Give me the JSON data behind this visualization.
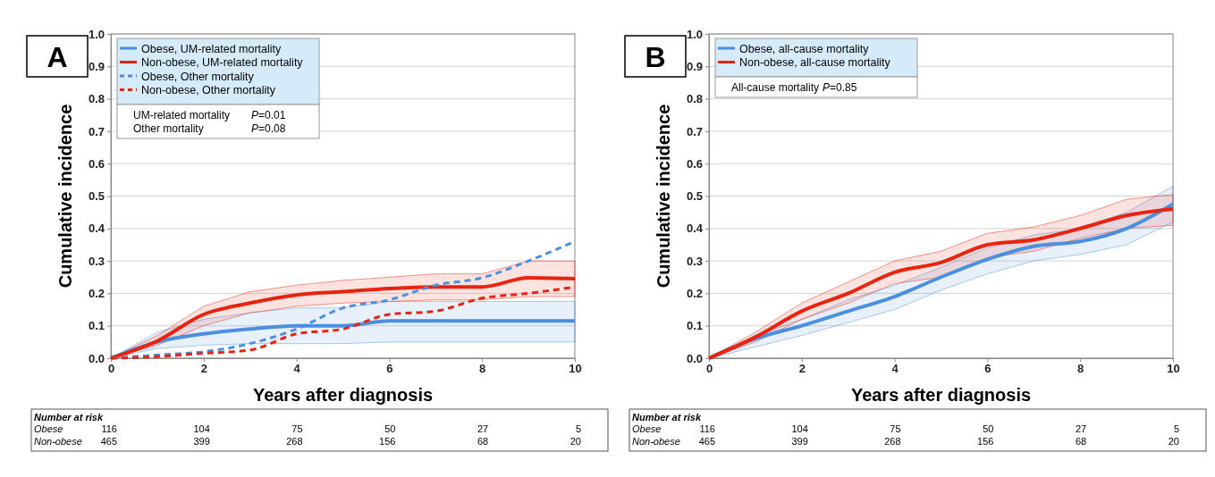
{
  "chart_data": [
    {
      "type": "line",
      "xlabel": "Years after diagnosis",
      "ylabel": "Cumulative incidence",
      "x": [
        0,
        1,
        2,
        3,
        4,
        5,
        6,
        7,
        8,
        9,
        10
      ],
      "xlim": [
        0,
        10
      ],
      "xticks": [
        0,
        2,
        4,
        6,
        8,
        10
      ],
      "ylim": [
        0,
        1
      ],
      "yticks": [
        {
          "value": 0,
          "label": "0.0"
        },
        {
          "value": 0.1,
          "label": "0.1"
        },
        {
          "value": 0.2,
          "label": "0.2"
        },
        {
          "value": 0.3,
          "label": "0.3"
        },
        {
          "value": 0.4,
          "label": "0.4"
        },
        {
          "value": 0.5,
          "label": "0.5"
        },
        {
          "value": 0.6,
          "label": "0.6"
        },
        {
          "value": 0.7,
          "label": "0.7"
        },
        {
          "value": 0.8,
          "label": "0.8"
        },
        {
          "value": 0.9,
          "label": "0.9"
        },
        {
          "value": 1,
          "label": "1.0"
        }
      ],
      "grid": "y",
      "legend": "top left",
      "series": [
        {
          "name": "Obese, UM-related mortality",
          "color": "#4a8fe0",
          "line_style": "solid",
          "values": [
            0,
            0.05,
            0.075,
            0.09,
            0.1,
            0.1,
            0.115,
            0.115,
            0.115,
            0.115,
            0.115
          ],
          "lower": [
            0,
            0.03,
            0.04,
            0.045,
            0.045,
            0.045,
            0.05,
            0.05,
            0.05,
            0.05,
            0.05
          ],
          "upper": [
            0,
            0.08,
            0.12,
            0.14,
            0.155,
            0.155,
            0.175,
            0.175,
            0.175,
            0.175,
            0.175
          ]
        },
        {
          "name": "Non-obese, UM-related mortality",
          "color": "#e8230f",
          "line_style": "solid",
          "values": [
            0,
            0.053,
            0.135,
            0.17,
            0.195,
            0.205,
            0.215,
            0.22,
            0.22,
            0.248,
            0.245
          ],
          "lower": [
            0,
            0.04,
            0.1,
            0.14,
            0.16,
            0.17,
            0.175,
            0.18,
            0.18,
            0.19,
            0.19
          ],
          "upper": [
            0,
            0.07,
            0.16,
            0.205,
            0.225,
            0.24,
            0.25,
            0.26,
            0.26,
            0.3,
            0.3
          ]
        },
        {
          "name": "Obese, Other mortality",
          "color": "#4a8fe0",
          "line_style": "dashed",
          "values": [
            0,
            0.01,
            0.02,
            0.045,
            0.09,
            0.155,
            0.18,
            0.225,
            0.248,
            0.3,
            0.36
          ]
        },
        {
          "name": "Non-obese, Other mortality",
          "color": "#e8230f",
          "line_style": "dashed",
          "values": [
            0,
            0.005,
            0.015,
            0.025,
            0.075,
            0.09,
            0.135,
            0.145,
            0.185,
            0.2,
            0.22
          ]
        }
      ],
      "annotations": [
        "A",
        "Number at risk",
        "Obese",
        "116",
        "104",
        "75",
        "50",
        "27",
        "5",
        "Non-obese",
        "465",
        "399",
        "268",
        "156",
        "68",
        "20",
        "UM-related mortality P=0.01",
        "Other mortality P=0.08"
      ]
    },
    {
      "type": "line",
      "xlabel": "Years after diagnosis",
      "ylabel": "Cumulative incidence",
      "x": [
        0,
        1,
        2,
        3,
        4,
        5,
        6,
        7,
        8,
        9,
        10
      ],
      "xlim": [
        0,
        10
      ],
      "xticks": [
        0,
        2,
        4,
        6,
        8,
        10
      ],
      "ylim": [
        0,
        1
      ],
      "yticks": [
        {
          "value": 0,
          "label": "0.0"
        },
        {
          "value": 0.1,
          "label": "0.1"
        },
        {
          "value": 0.2,
          "label": "0.2"
        },
        {
          "value": 0.3,
          "label": "0.3"
        },
        {
          "value": 0.4,
          "label": "0.4"
        },
        {
          "value": 0.5,
          "label": "0.5"
        },
        {
          "value": 0.6,
          "label": "0.6"
        },
        {
          "value": 0.7,
          "label": "0.7"
        },
        {
          "value": 0.8,
          "label": "0.8"
        },
        {
          "value": 0.9,
          "label": "0.9"
        },
        {
          "value": 1,
          "label": "1.0"
        }
      ],
      "grid": "y",
      "legend": "top left",
      "series": [
        {
          "name": "Obese, all-cause mortality",
          "color": "#4a8fe0",
          "line_style": "solid",
          "values": [
            0,
            0.06,
            0.1,
            0.145,
            0.19,
            0.25,
            0.305,
            0.345,
            0.36,
            0.4,
            0.475
          ],
          "lower": [
            0,
            0.035,
            0.07,
            0.11,
            0.15,
            0.21,
            0.26,
            0.3,
            0.32,
            0.35,
            0.42
          ],
          "upper": [
            0,
            0.07,
            0.12,
            0.18,
            0.225,
            0.28,
            0.34,
            0.38,
            0.4,
            0.45,
            0.53
          ]
        },
        {
          "name": "Non-obese, all-cause mortality",
          "color": "#e8230f",
          "line_style": "solid",
          "values": [
            0,
            0.065,
            0.145,
            0.2,
            0.265,
            0.295,
            0.35,
            0.365,
            0.4,
            0.44,
            0.46
          ],
          "lower": [
            0,
            0.05,
            0.12,
            0.17,
            0.23,
            0.25,
            0.31,
            0.33,
            0.37,
            0.4,
            0.41
          ],
          "upper": [
            0,
            0.08,
            0.17,
            0.235,
            0.3,
            0.33,
            0.385,
            0.405,
            0.44,
            0.49,
            0.505
          ]
        }
      ],
      "annotations": [
        "B",
        "Number at risk",
        "Obese",
        "116",
        "104",
        "75",
        "50",
        "27",
        "5",
        "Non-obese",
        "465",
        "399",
        "268",
        "156",
        "68",
        "20",
        "All-cause mortality P=0.85"
      ]
    }
  ]
}
